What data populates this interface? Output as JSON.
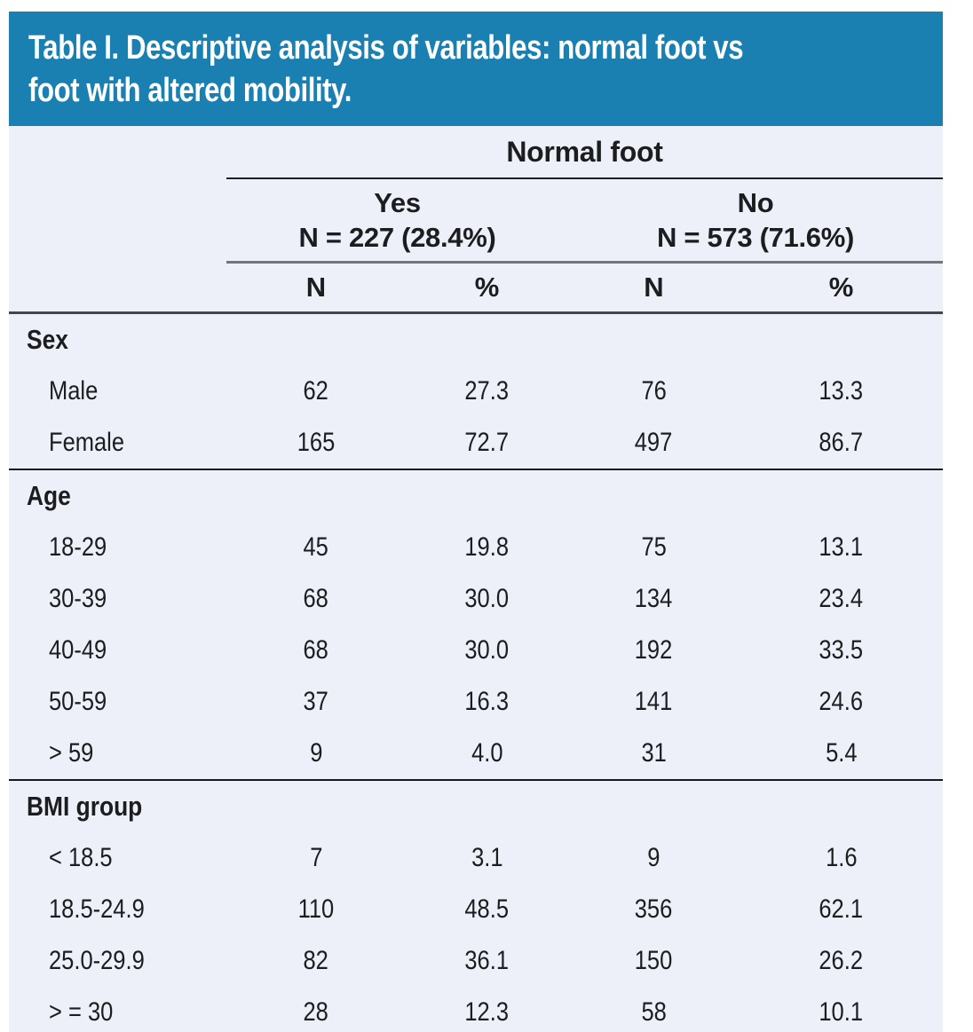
{
  "title": {
    "full": "Table I. Descriptive analysis of variables: normal foot vs foot with altered mobility.",
    "line1": "Table I. Descriptive analysis of variables: normal foot vs",
    "line2": "foot with altered mobility."
  },
  "header": {
    "group_label": "Normal foot",
    "yes": {
      "label": "Yes",
      "count_label": "N = 227 (28.4%)"
    },
    "no": {
      "label": "No",
      "count_label": "N = 573 (71.6%)"
    },
    "columns": [
      "N",
      "%",
      "N",
      "%"
    ]
  },
  "sections": [
    {
      "label": "Sex",
      "rows": [
        {
          "label": "Male",
          "values": [
            "62",
            "27.3",
            "76",
            "13.3"
          ]
        },
        {
          "label": "Female",
          "values": [
            "165",
            "72.7",
            "497",
            "86.7"
          ]
        }
      ]
    },
    {
      "label": "Age",
      "rows": [
        {
          "label": "18-29",
          "values": [
            "45",
            "19.8",
            "75",
            "13.1"
          ]
        },
        {
          "label": "30-39",
          "values": [
            "68",
            "30.0",
            "134",
            "23.4"
          ]
        },
        {
          "label": "40-49",
          "values": [
            "68",
            "30.0",
            "192",
            "33.5"
          ]
        },
        {
          "label": "50-59",
          "values": [
            "37",
            "16.3",
            "141",
            "24.6"
          ]
        },
        {
          "label": "> 59",
          "values": [
            "9",
            "4.0",
            "31",
            "5.4"
          ]
        }
      ]
    },
    {
      "label": "BMI group",
      "rows": [
        {
          "label": "< 18.5",
          "values": [
            "7",
            "3.1",
            "9",
            "1.6"
          ]
        },
        {
          "label": "18.5-24.9",
          "values": [
            "110",
            "48.5",
            "356",
            "62.1"
          ]
        },
        {
          "label": "25.0-29.9",
          "values": [
            "82",
            "36.1",
            "150",
            "26.2"
          ]
        },
        {
          "label": "> = 30",
          "values": [
            "28",
            "12.3",
            "58",
            "10.1"
          ]
        }
      ]
    }
  ],
  "colors": {
    "title_bg": "#1A80B2",
    "title_text": "#FFFFFF",
    "body_bg": "#EDF0F8",
    "text": "#1B1D1F"
  }
}
